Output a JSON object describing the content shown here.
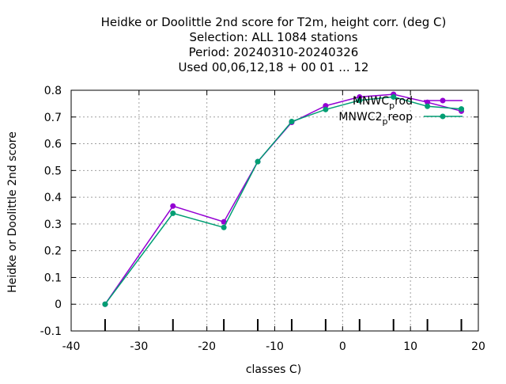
{
  "chart_data": {
    "type": "line",
    "title_lines": [
      "Heidke or Doolittle 2nd score  for T2m, height corr. (deg C)",
      "Selection: ALL   1084 stations",
      "Period: 20240310-20240326",
      "Used  00,06,12,18 + 00 01 ... 12"
    ],
    "xlabel": "classes C)",
    "ylabel": "Heidke or Doolittle 2nd score",
    "xlim": [
      -40,
      20
    ],
    "ylim": [
      -0.1,
      0.8
    ],
    "x_ticks": [
      "-40",
      "-30",
      "-20",
      "-10",
      "0",
      "10",
      "20"
    ],
    "y_ticks": [
      "-0.1",
      "0",
      "0.1",
      "0.2",
      "0.3",
      "0.4",
      "0.5",
      "0.6",
      "0.7",
      "0.8"
    ],
    "grid": true,
    "legend_position": "top-right",
    "legend": [
      {
        "base": "MNWC",
        "sub": "p",
        "rest": "rod"
      },
      {
        "base": "MNWC2",
        "sub": "p",
        "rest": "reop"
      }
    ],
    "count_bar_x": [
      -35,
      -25,
      -17.5,
      -12.5,
      -7.5,
      -2.5,
      2.5,
      7.5,
      12.5,
      17.5
    ],
    "series": [
      {
        "color": "#9400d3",
        "x": [
          -35,
          -25,
          -17.5,
          -12.5,
          -7.5,
          -2.5,
          2.5,
          7.5,
          12.5,
          17.5
        ],
        "y": [
          0.0,
          0.367,
          0.308,
          0.533,
          0.68,
          0.742,
          0.775,
          0.785,
          0.755,
          0.722
        ]
      },
      {
        "color": "#009e73",
        "x": [
          -35,
          -25,
          -17.5,
          -12.5,
          -7.5,
          -2.5,
          2.5,
          7.5,
          12.5,
          17.5
        ],
        "y": [
          0.0,
          0.34,
          0.287,
          0.533,
          0.683,
          0.728,
          0.762,
          0.775,
          0.74,
          0.73
        ]
      }
    ]
  }
}
